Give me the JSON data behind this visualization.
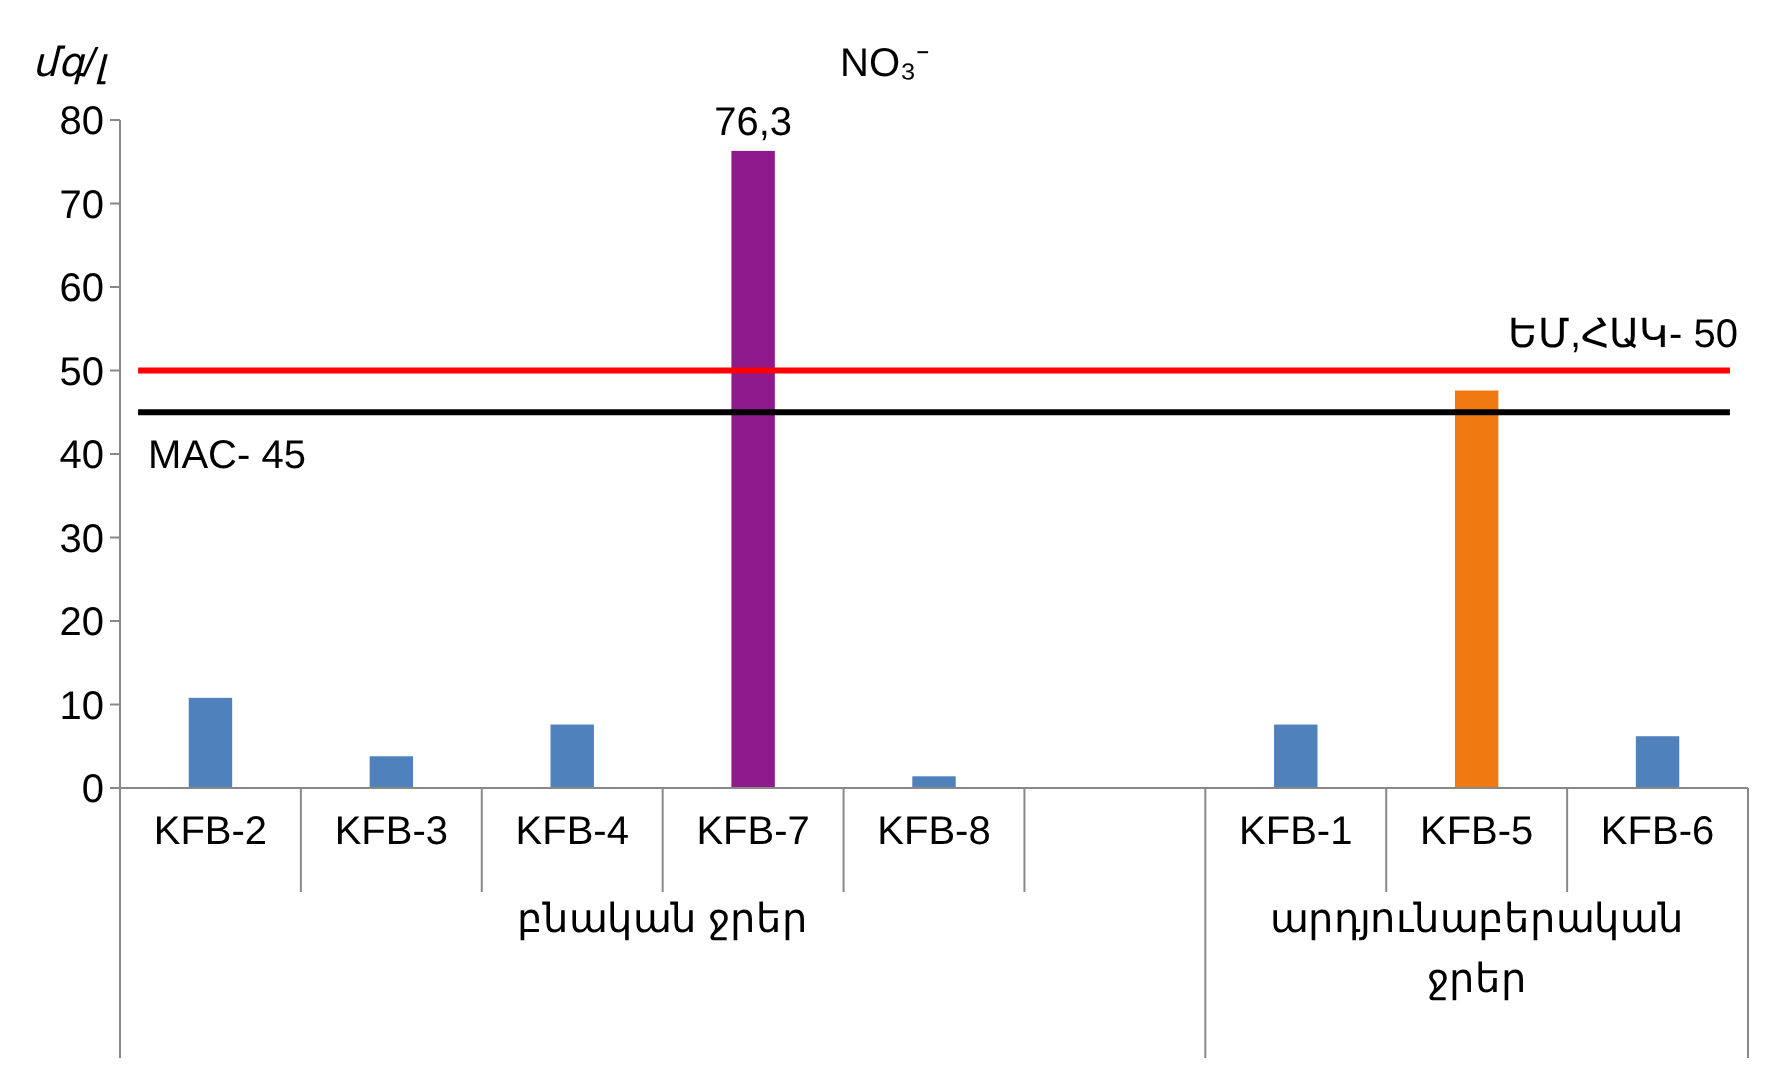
{
  "chart_data": {
    "type": "bar",
    "title": "NO₃⁻",
    "ylabel": "մգ/լ",
    "categories": [
      "KFB-2",
      "KFB-3",
      "KFB-4",
      "KFB-7",
      "KFB-8",
      null,
      "KFB-1",
      "KFB-5",
      "KFB-6"
    ],
    "values": [
      10.8,
      3.8,
      7.6,
      76.3,
      1.4,
      null,
      7.6,
      47.6,
      6.2
    ],
    "colors": [
      "#4f81bd",
      "#4f81bd",
      "#4f81bd",
      "#8e1a8c",
      "#4f81bd",
      null,
      "#4f81bd",
      "#f07a10",
      "#4f81bd"
    ],
    "value_labels": [
      null,
      null,
      null,
      "76,3",
      null,
      null,
      null,
      null,
      null
    ],
    "ylim": [
      0,
      80
    ],
    "yticks": [
      0,
      10,
      20,
      30,
      40,
      50,
      60,
      70,
      80
    ],
    "grid": false,
    "ref_lines": [
      {
        "axis": "y",
        "value": 50,
        "label": "ԵՄ,ՀԱԿ- 50",
        "color": "#ff0000"
      },
      {
        "axis": "y",
        "value": 45,
        "label": "MAC- 45",
        "color": "#000000"
      }
    ],
    "annotations": [
      "բնական ջրեր",
      "արդյունաբերական ջրեր"
    ]
  }
}
